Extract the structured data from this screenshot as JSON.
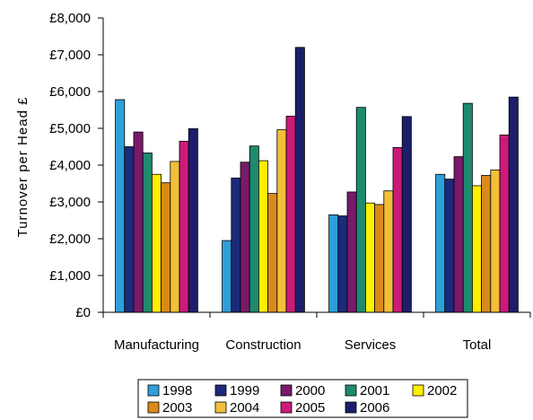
{
  "chart_data": {
    "type": "bar",
    "ylabel": "Turnover per Head £",
    "xlabel": "",
    "ylim": [
      0,
      8000
    ],
    "y_ticks": [
      {
        "value": 0,
        "label": "£0"
      },
      {
        "value": 1000,
        "label": "£1,000"
      },
      {
        "value": 2000,
        "label": "£2,000"
      },
      {
        "value": 3000,
        "label": "£3,000"
      },
      {
        "value": 4000,
        "label": "£4,000"
      },
      {
        "value": 5000,
        "label": "£5,000"
      },
      {
        "value": 6000,
        "label": "£6,000"
      },
      {
        "value": 7000,
        "label": "£7,000"
      },
      {
        "value": 8000,
        "label": "£8,000"
      }
    ],
    "categories": [
      "Manufacturing",
      "Construction",
      "Services",
      "Total"
    ],
    "series": [
      {
        "name": "1998",
        "color": "#2e9fd8",
        "values": [
          5780,
          1950,
          2650,
          3750
        ]
      },
      {
        "name": "1999",
        "color": "#1b2a7a",
        "values": [
          4500,
          3650,
          2620,
          3620
        ]
      },
      {
        "name": "2000",
        "color": "#7a1a6a",
        "values": [
          4900,
          4080,
          3270,
          4230
        ]
      },
      {
        "name": "2001",
        "color": "#1e8a6e",
        "values": [
          4330,
          4520,
          5570,
          5680
        ]
      },
      {
        "name": "2002",
        "color": "#ffee00",
        "values": [
          3750,
          4120,
          2970,
          3440
        ]
      },
      {
        "name": "2003",
        "color": "#d98a1a",
        "values": [
          3520,
          3230,
          2930,
          3720
        ]
      },
      {
        "name": "2004",
        "color": "#f2bf3a",
        "values": [
          4100,
          4960,
          3300,
          3870
        ]
      },
      {
        "name": "2005",
        "color": "#cc1a7a",
        "values": [
          4650,
          5330,
          4480,
          4820
        ]
      },
      {
        "name": "2006",
        "color": "#1b1f6b",
        "values": [
          4990,
          7200,
          5320,
          5850
        ]
      }
    ],
    "grid": false,
    "legend_position": "bottom"
  }
}
